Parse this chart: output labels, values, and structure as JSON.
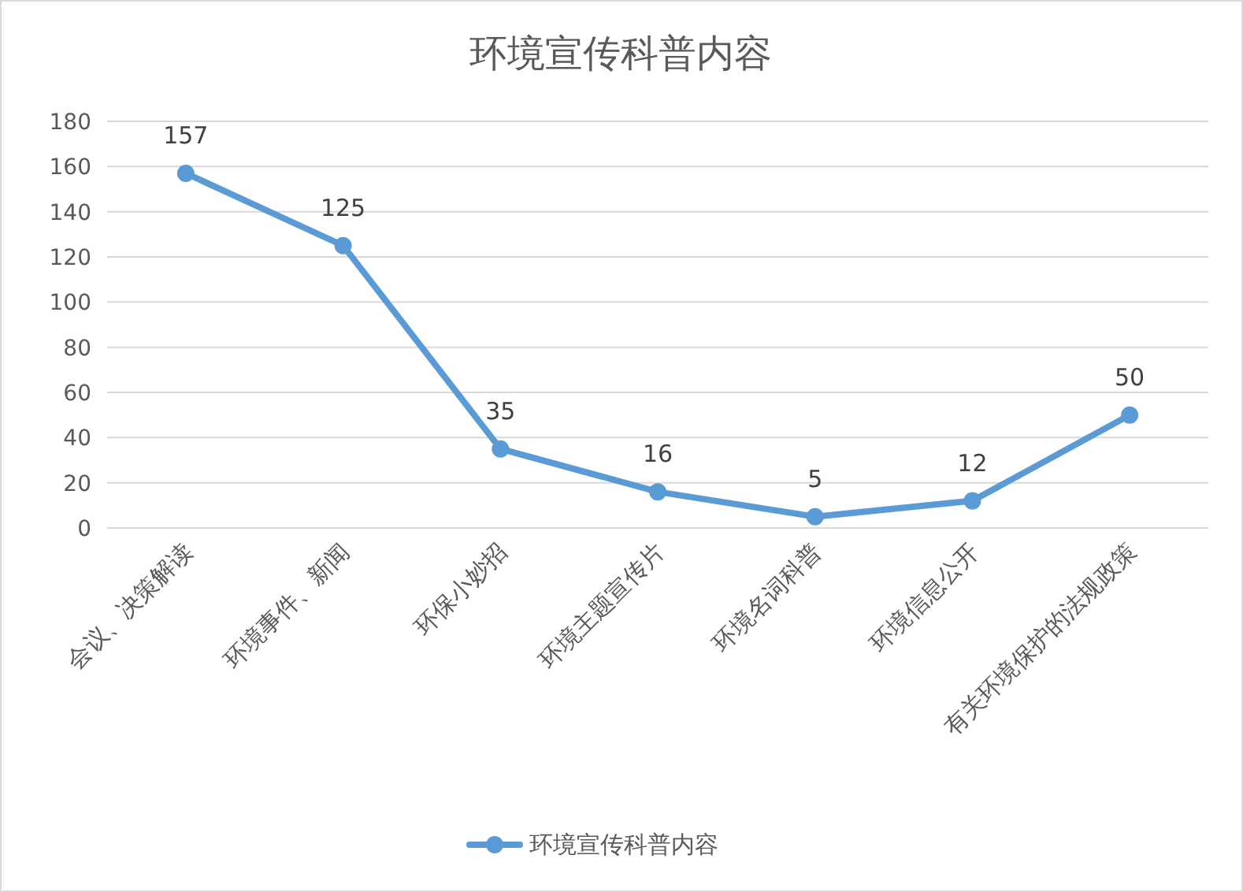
{
  "chart_data": {
    "type": "line",
    "title": "环境宣传科普内容",
    "categories": [
      "会议、决策解读",
      "环境事件、新闻",
      "环保小妙招",
      "环境主题宣传片",
      "环境名词科普",
      "环境信息公开",
      "有关环境保护的法规政策"
    ],
    "series": [
      {
        "name": "环境宣传科普内容",
        "color": "#5b9bd5",
        "values": [
          157,
          125,
          35,
          16,
          5,
          12,
          50
        ]
      }
    ],
    "ylim": [
      0,
      180
    ],
    "yticks": [
      0,
      20,
      40,
      60,
      80,
      100,
      120,
      140,
      160,
      180
    ],
    "grid": "y",
    "legend": "bottom",
    "marker": "circle",
    "line_style": "solid",
    "data_labels": true
  }
}
